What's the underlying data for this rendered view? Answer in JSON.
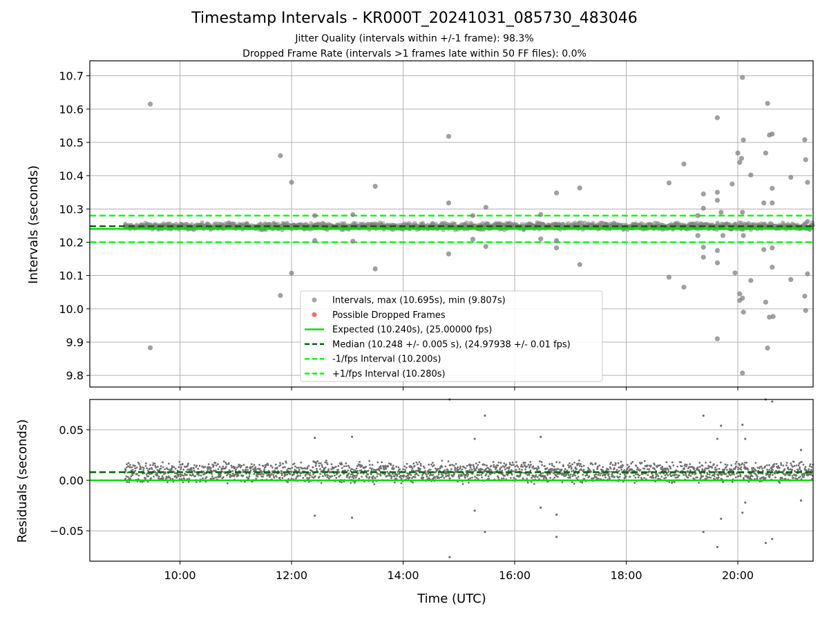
{
  "title": "Timestamp Intervals - KR000T_20241031_085730_483046",
  "subtitle_jitter": "Jitter Quality (intervals within +/-1 frame): 98.3%",
  "subtitle_dropped": "Dropped Frame Rate (intervals >1 frames late within 50 FF files): 0.0%",
  "colors": {
    "points": "#808080",
    "dropped": "#ff0000",
    "expected": "#00e000",
    "median": "#006400",
    "interval": "#00ff00",
    "grid": "#b0b0b0"
  },
  "chart_data": [
    {
      "type": "scatter",
      "panel": "top",
      "ylabel": "Intervals (seconds)",
      "xlim": [
        "08:23",
        "21:21"
      ],
      "ylim": [
        9.765,
        10.745
      ],
      "yticks": [
        "9.8",
        "9.9",
        "10.0",
        "10.1",
        "10.2",
        "10.3",
        "10.4",
        "10.5",
        "10.6",
        "10.7"
      ],
      "grid": true,
      "legend_position": "lower-center",
      "legend": [
        "Intervals, max (10.695s), min (9.807s)",
        "Possible Dropped Frames",
        "Expected (10.240s), (25.00000 fps)",
        "Median (10.248 +/- 0.005 s), (24.97938 +/- 0.01 fps)",
        "-1/fps Interval (10.200s)",
        "+1/fps Interval (10.280s)"
      ],
      "reference_lines": {
        "expected": 10.24,
        "median": 10.248,
        "minus_one_frame": 10.2,
        "plus_one_frame": 10.28
      },
      "dense_band": {
        "x_start": "09:00",
        "x_end": "21:21",
        "center": 10.248,
        "spread": 0.012
      },
      "outliers": [
        [
          "09:28",
          10.615
        ],
        [
          "09:28",
          9.883
        ],
        [
          "11:48",
          10.46
        ],
        [
          "11:48",
          10.04
        ],
        [
          "12:00",
          10.38
        ],
        [
          "12:00",
          10.107
        ],
        [
          "12:25",
          10.28
        ],
        [
          "12:25",
          10.205
        ],
        [
          "13:06",
          10.283
        ],
        [
          "13:06",
          10.203
        ],
        [
          "13:30",
          10.368
        ],
        [
          "13:30",
          10.12
        ],
        [
          "14:49",
          10.518
        ],
        [
          "14:49",
          10.318
        ],
        [
          "14:49",
          10.165
        ],
        [
          "15:15",
          10.28
        ],
        [
          "15:15",
          10.209
        ],
        [
          "15:29",
          10.305
        ],
        [
          "15:29",
          10.187
        ],
        [
          "16:28",
          10.283
        ],
        [
          "16:28",
          10.21
        ],
        [
          "16:45",
          10.348
        ],
        [
          "16:45",
          10.183
        ],
        [
          "16:45",
          10.205
        ],
        [
          "17:10",
          10.363
        ],
        [
          "17:10",
          10.133
        ],
        [
          "18:46",
          10.378
        ],
        [
          "18:46",
          10.095
        ],
        [
          "19:02",
          10.435
        ],
        [
          "19:02",
          10.065
        ],
        [
          "19:23",
          10.345
        ],
        [
          "19:23",
          10.302
        ],
        [
          "19:23",
          10.185
        ],
        [
          "19:23",
          10.155
        ],
        [
          "19:17",
          10.28
        ],
        [
          "19:17",
          10.22
        ],
        [
          "19:38",
          10.574
        ],
        [
          "19:38",
          10.35
        ],
        [
          "19:38",
          10.326
        ],
        [
          "19:38",
          10.175
        ],
        [
          "19:38",
          10.138
        ],
        [
          "19:38",
          9.91
        ],
        [
          "19:42",
          10.29
        ],
        [
          "19:44",
          10.22
        ],
        [
          "19:54",
          10.375
        ],
        [
          "19:57",
          10.108
        ],
        [
          "20:00",
          10.468
        ],
        [
          "20:02",
          10.44
        ],
        [
          "20:02",
          10.025
        ],
        [
          "20:02",
          10.045
        ],
        [
          "20:04",
          10.452
        ],
        [
          "20:05",
          10.695
        ],
        [
          "20:06",
          10.507
        ],
        [
          "20:05",
          10.29
        ],
        [
          "20:06",
          10.22
        ],
        [
          "20:05",
          10.032
        ],
        [
          "20:06",
          9.99
        ],
        [
          "20:05",
          9.807
        ],
        [
          "20:14",
          10.402
        ],
        [
          "20:14",
          10.085
        ],
        [
          "20:28",
          10.318
        ],
        [
          "20:28",
          10.178
        ],
        [
          "20:30",
          10.468
        ],
        [
          "20:30",
          10.02
        ],
        [
          "20:32",
          10.617
        ],
        [
          "20:32",
          9.882
        ],
        [
          "20:34",
          10.522
        ],
        [
          "20:34",
          9.975
        ],
        [
          "20:37",
          10.525
        ],
        [
          "20:37",
          10.362
        ],
        [
          "20:37",
          10.318
        ],
        [
          "20:37",
          10.183
        ],
        [
          "20:37",
          10.125
        ],
        [
          "20:38",
          9.977
        ],
        [
          "20:57",
          10.395
        ],
        [
          "20:57",
          10.088
        ],
        [
          "21:12",
          10.508
        ],
        [
          "21:12",
          10.038
        ],
        [
          "21:13",
          10.448
        ],
        [
          "21:13",
          9.995
        ],
        [
          "21:15",
          10.38
        ],
        [
          "21:15",
          10.105
        ],
        [
          "21:15",
          10.262
        ]
      ]
    },
    {
      "type": "scatter",
      "panel": "bottom",
      "xlabel": "Time (UTC)",
      "ylabel": "Residuals (seconds)",
      "xlim": [
        "08:23",
        "21:21"
      ],
      "ylim": [
        -0.08,
        0.08
      ],
      "xticks": [
        "10:00",
        "12:00",
        "14:00",
        "16:00",
        "18:00",
        "20:00"
      ],
      "yticks": [
        "−0.05",
        "0.00",
        "0.05"
      ],
      "grid": true,
      "reference_lines": {
        "zero": 0.0,
        "median_offset": 0.008
      },
      "dense_band": {
        "x_start": "09:00",
        "x_end": "21:21",
        "center": 0.008,
        "spread": 0.012
      },
      "outliers": [
        [
          "12:25",
          0.042
        ],
        [
          "12:25",
          -0.035
        ],
        [
          "13:05",
          0.043
        ],
        [
          "13:05",
          -0.037
        ],
        [
          "14:50",
          0.08
        ],
        [
          "14:50",
          -0.076
        ],
        [
          "15:17",
          0.041
        ],
        [
          "15:17",
          -0.03
        ],
        [
          "15:28",
          0.064
        ],
        [
          "15:28",
          -0.051
        ],
        [
          "16:28",
          0.043
        ],
        [
          "16:28",
          -0.027
        ],
        [
          "16:45",
          -0.034
        ],
        [
          "16:45",
          -0.056
        ],
        [
          "19:23",
          0.064
        ],
        [
          "19:23",
          -0.051
        ],
        [
          "19:38",
          0.041
        ],
        [
          "19:38",
          -0.066
        ],
        [
          "19:42",
          0.054
        ],
        [
          "19:42",
          -0.038
        ],
        [
          "20:05",
          0.055
        ],
        [
          "20:05",
          -0.032
        ],
        [
          "20:08",
          0.041
        ],
        [
          "20:08",
          -0.022
        ],
        [
          "20:30",
          0.08
        ],
        [
          "20:30",
          -0.062
        ],
        [
          "20:37",
          0.078
        ],
        [
          "20:37",
          -0.058
        ],
        [
          "21:08",
          0.03
        ],
        [
          "21:08",
          -0.02
        ]
      ]
    }
  ]
}
